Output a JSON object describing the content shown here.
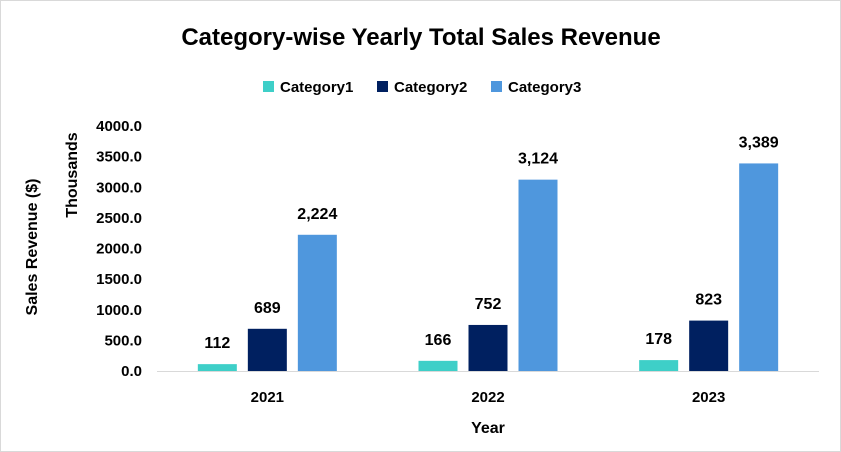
{
  "chart_data": {
    "type": "bar",
    "title": "Category-wise Yearly Total Sales Revenue",
    "xlabel": "Year",
    "ylabel": "Sales Revenue ($)",
    "yunit_label": "Thousands",
    "categories": [
      "2021",
      "2022",
      "2023"
    ],
    "series": [
      {
        "name": "Category1",
        "color": "#3ecfc8",
        "values": [
          112,
          166,
          178
        ],
        "labels": [
          "112",
          "166",
          "178"
        ]
      },
      {
        "name": "Category2",
        "color": "#002060",
        "values": [
          689,
          752,
          823
        ],
        "labels": [
          "689",
          "752",
          "823"
        ]
      },
      {
        "name": "Category3",
        "color": "#4f97dd",
        "values": [
          2224,
          3124,
          3389
        ],
        "labels": [
          "2,224",
          "3,124",
          "3,389"
        ]
      }
    ],
    "ylim": [
      0,
      4000
    ],
    "yticks": [
      0,
      500,
      1000,
      1500,
      2000,
      2500,
      3000,
      3500,
      4000
    ],
    "ytick_labels": [
      "0.0",
      "500.0",
      "1000.0",
      "1500.0",
      "2000.0",
      "2500.0",
      "3000.0",
      "3500.0",
      "4000.0"
    ],
    "grid": false,
    "legend_position": "top"
  }
}
